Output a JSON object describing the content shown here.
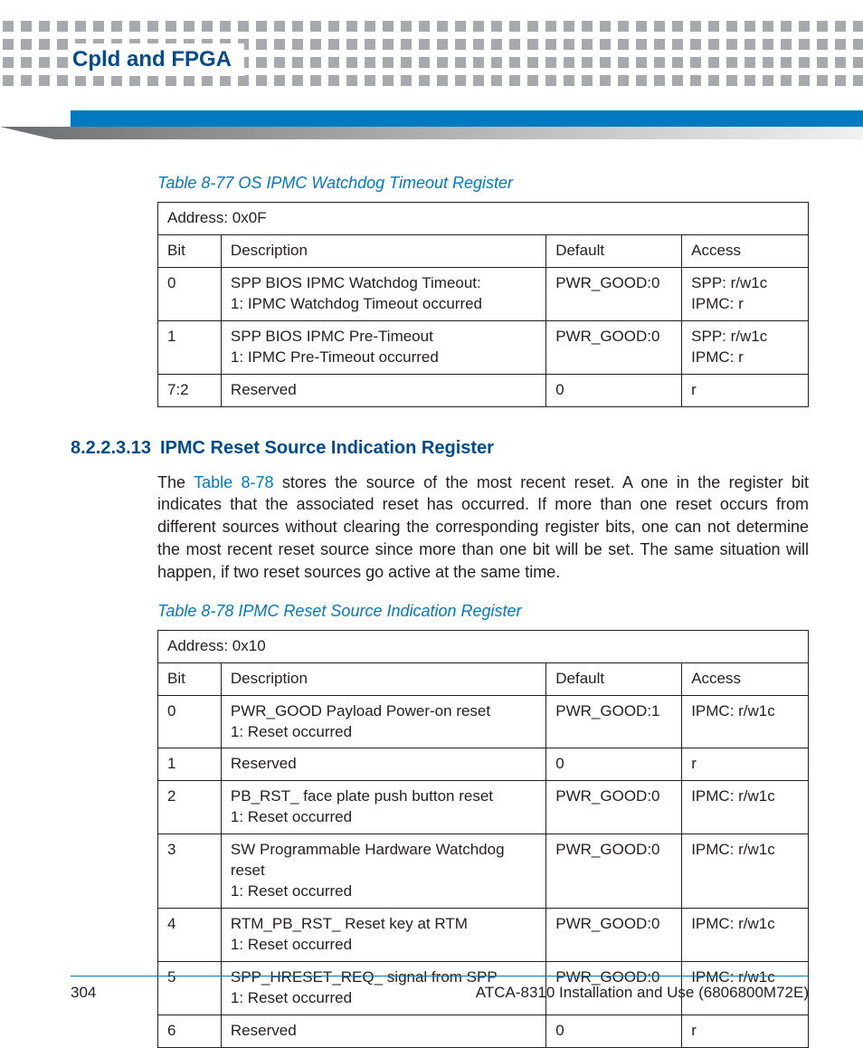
{
  "colors": {
    "brand_dark_blue": "#004b8d",
    "brand_blue": "#0079c1",
    "dot_gray": "#a7a9ac",
    "text": "#231f20",
    "grad_start": "#6d6e71",
    "grad_end": "#f1f1f2"
  },
  "header": {
    "chapter_title": "Cpld and FPGA"
  },
  "table77": {
    "caption": "Table 8-77 OS IPMC Watchdog Timeout Register",
    "address": "Address: 0x0F",
    "columns": {
      "bit": "Bit",
      "desc": "Description",
      "def": "Default",
      "acc": "Access"
    },
    "rows": [
      {
        "bit": "0",
        "desc": "SPP BIOS IPMC Watchdog Timeout:\n1: IPMC Watchdog Timeout occurred",
        "def": "PWR_GOOD:0",
        "acc": "SPP: r/w1c\nIPMC: r"
      },
      {
        "bit": "1",
        "desc": "SPP BIOS IPMC Pre-Timeout\n1: IPMC Pre-Timeout occurred",
        "def": "PWR_GOOD:0",
        "acc": "SPP: r/w1c\nIPMC: r"
      },
      {
        "bit": "7:2",
        "desc": "Reserved",
        "def": "0",
        "acc": "r"
      }
    ]
  },
  "section": {
    "number": "8.2.2.3.13",
    "title": "IPMC Reset Source Indication Register",
    "para_pre": "The ",
    "para_xref": "Table 8-78",
    "para_post": " stores the source of the most recent reset. A one in the register bit indicates that the associated reset has occurred. If more than one reset occurs from different sources without clearing the corresponding register bits, one can not determine the most recent reset source since more than one bit will be set. The same situation will happen, if two reset sources go active at the same time."
  },
  "table78": {
    "caption": "Table 8-78 IPMC Reset Source Indication Register",
    "address": "Address: 0x10",
    "columns": {
      "bit": "Bit",
      "desc": "Description",
      "def": "Default",
      "acc": "Access"
    },
    "rows": [
      {
        "bit": "0",
        "desc": "PWR_GOOD Payload Power-on reset\n1: Reset occurred",
        "def": "PWR_GOOD:1",
        "acc": "IPMC: r/w1c"
      },
      {
        "bit": "1",
        "desc": "Reserved",
        "def": "0",
        "acc": "r"
      },
      {
        "bit": "2",
        "desc": "PB_RST_ face plate push button reset\n1: Reset occurred",
        "def": "PWR_GOOD:0",
        "acc": "IPMC: r/w1c"
      },
      {
        "bit": "3",
        "desc": "SW Programmable Hardware Watchdog reset\n1: Reset occurred",
        "def": "PWR_GOOD:0",
        "acc": "IPMC: r/w1c"
      },
      {
        "bit": "4",
        "desc": "RTM_PB_RST_ Reset key at RTM\n1: Reset occurred",
        "def": "PWR_GOOD:0",
        "acc": "IPMC: r/w1c"
      },
      {
        "bit": "5",
        "desc": "SPP_HRESET_REQ_ signal from SPP\n1: Reset occurred",
        "def": "PWR_GOOD:0",
        "acc": "IPMC: r/w1c"
      },
      {
        "bit": "6",
        "desc": "Reserved",
        "def": "0",
        "acc": "r"
      }
    ]
  },
  "footer": {
    "page_number": "304",
    "doc_id": "ATCA-8310 Installation and Use (6806800M72E)"
  }
}
